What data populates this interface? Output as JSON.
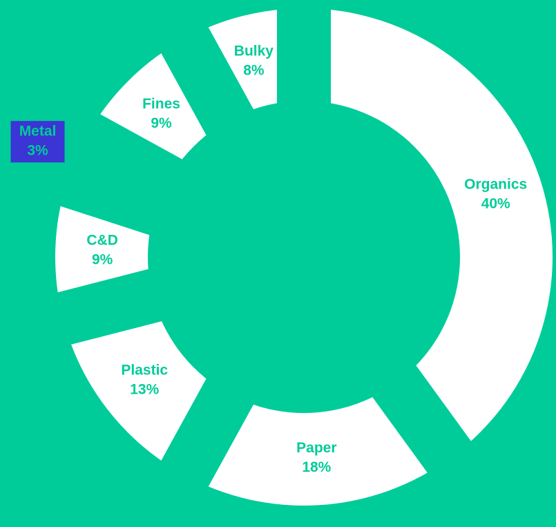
{
  "chart_data": {
    "type": "donut",
    "categories": [
      "Organics",
      "Paper",
      "Plastic",
      "C&D",
      "Metal",
      "Fines",
      "Bulky"
    ],
    "values": [
      40,
      18,
      13,
      9,
      3,
      9,
      8
    ],
    "value_labels": [
      "40%",
      "18%",
      "13%",
      "9%",
      "3%",
      "9%",
      "8%"
    ],
    "color": "#ffffff",
    "highlighted_index": 4,
    "highlight_color": "#3a35d4"
  }
}
